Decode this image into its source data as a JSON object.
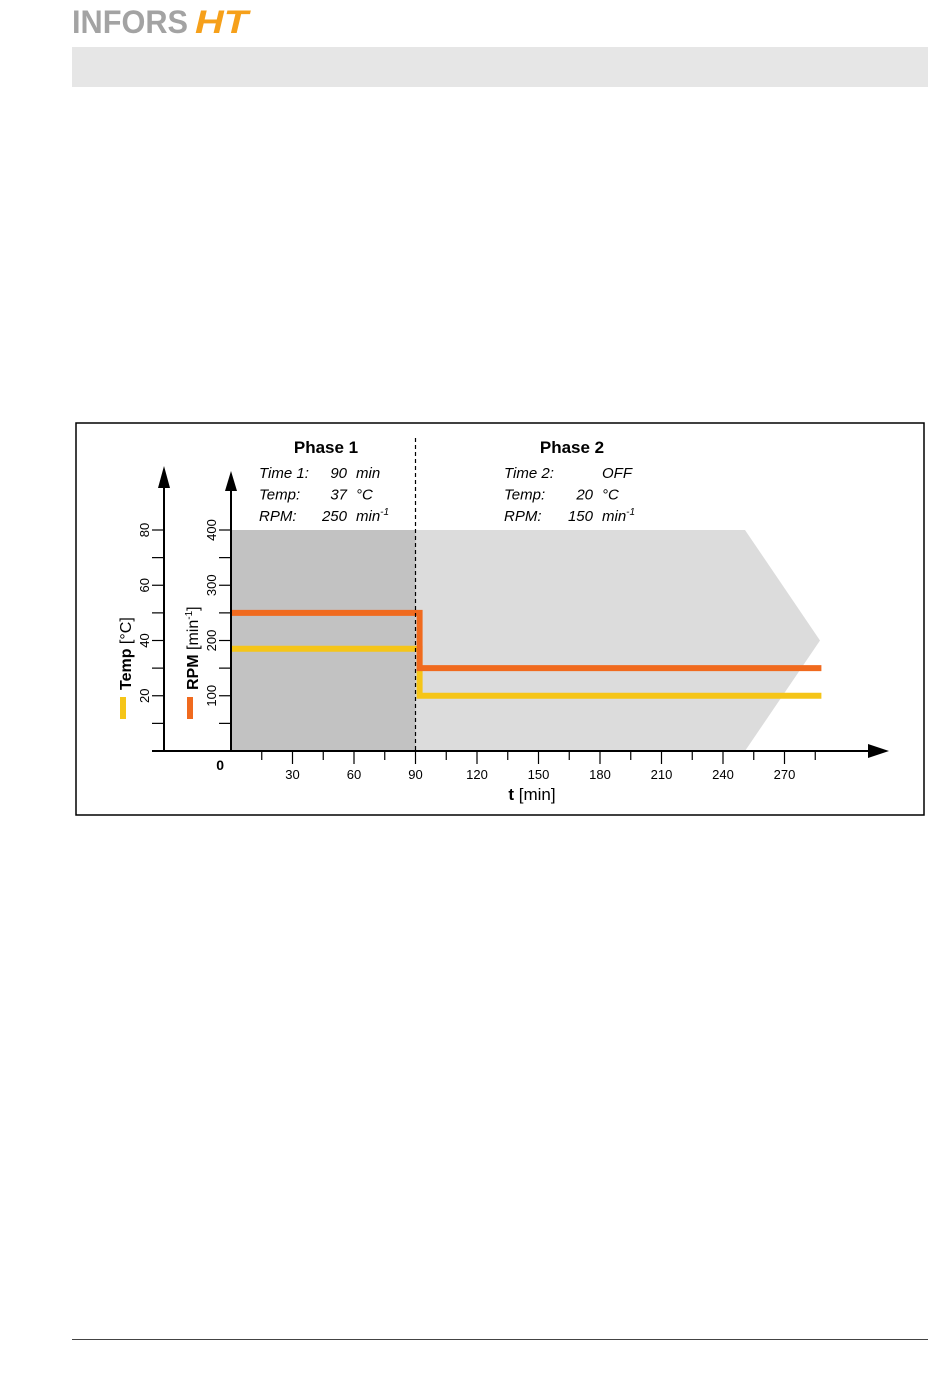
{
  "brand": {
    "logo_text": "INFORS",
    "logo_mark": "HT"
  },
  "colors": {
    "rpm": "#f06a1e",
    "temp": "#f5c518",
    "phase1_bg": "#c2c2c2",
    "phase2_bg": "#dcdcdc",
    "logo_gray": "#a3a3a3",
    "logo_orange": "#f6a01a"
  },
  "chart_data": {
    "type": "line",
    "title": "",
    "xlabel_bold": "t",
    "xlabel_unit": "[min]",
    "x_origin_label": "0",
    "xlim": [
      0,
      300
    ],
    "x_ticks": [
      30,
      60,
      90,
      120,
      150,
      180,
      210,
      240,
      270
    ],
    "rpm_axis": {
      "label": "RPM",
      "unit": "[min",
      "unit_exp": "-1",
      "unit_close": "]",
      "ylim": [
        0,
        400
      ],
      "ticks": [
        100,
        200,
        300,
        400
      ]
    },
    "temp_axis": {
      "label": "Temp",
      "unit": "[°C]",
      "ylim": [
        0,
        80
      ],
      "ticks": [
        20,
        40,
        60,
        80
      ]
    },
    "phase_boundary_x": 90,
    "phases": [
      {
        "title": "Phase 1",
        "rows": [
          {
            "key": "Time 1:",
            "value": "90",
            "unit": "min",
            "unit_exp": ""
          },
          {
            "key": "Temp:",
            "value": "37",
            "unit": "°C",
            "unit_exp": ""
          },
          {
            "key": "RPM:",
            "value": "250",
            "unit": "min",
            "unit_exp": "-1"
          }
        ]
      },
      {
        "title": "Phase 2",
        "rows": [
          {
            "key": "Time 2:",
            "value": "OFF",
            "unit": "",
            "unit_exp": ""
          },
          {
            "key": "Temp:",
            "value": "20",
            "unit": "°C",
            "unit_exp": ""
          },
          {
            "key": "RPM:",
            "value": "150",
            "unit": "min",
            "unit_exp": "-1"
          }
        ]
      }
    ],
    "series": [
      {
        "name": "RPM",
        "axis": "rpm",
        "points": [
          [
            0,
            250
          ],
          [
            92,
            250
          ],
          [
            92,
            150
          ],
          [
            288,
            150
          ]
        ]
      },
      {
        "name": "Temp",
        "axis": "temp",
        "points": [
          [
            0,
            37
          ],
          [
            92,
            37
          ],
          [
            92,
            20
          ],
          [
            288,
            20
          ]
        ]
      }
    ]
  }
}
